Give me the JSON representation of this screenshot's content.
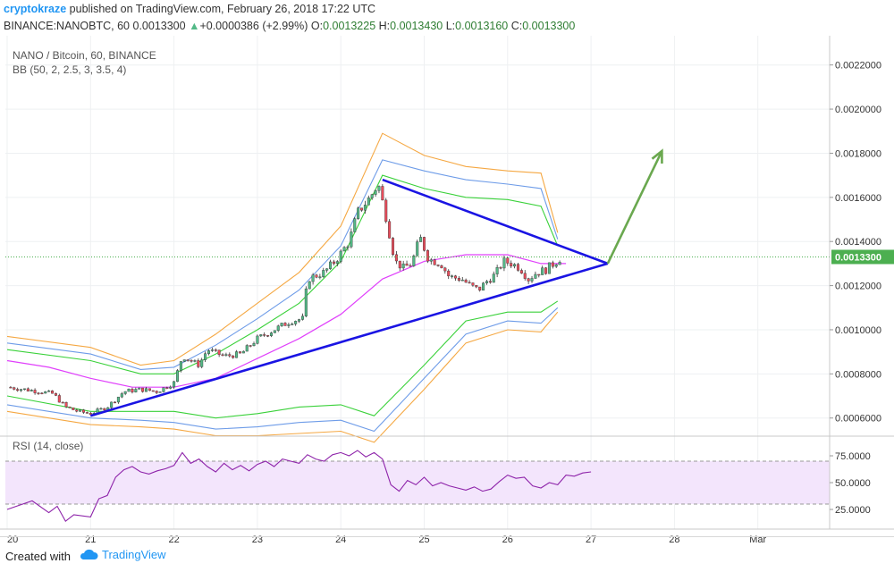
{
  "header": {
    "author": "cryptokraze",
    "published_text": "published on TradingView.com, February 26, 2018 17:22 UTC",
    "symbol": "BINANCE:NANOBTC, 60",
    "last_price": "0.0013300",
    "change_arrow": "▲",
    "change": "+0.0000386 (+2.99%)",
    "o_label": "O:",
    "o_value": "0.0013225",
    "h_label": "H:",
    "h_value": "0.0013430",
    "l_label": "L:",
    "l_value": "0.0013160",
    "c_label": "C:",
    "c_value": "0.0013300"
  },
  "legend": {
    "title": "NANO / Bitcoin, 60, BINANCE",
    "bb": "BB (50, 2, 2.5, 3, 3.5, 4)",
    "rsi": "RSI (14, close)"
  },
  "chart_data": {
    "type": "candlestick",
    "title": "NANO / Bitcoin, 60, BINANCE",
    "price_axis": {
      "ticks": [
        "0.0006000",
        "0.0008000",
        "0.0010000",
        "0.0012000",
        "0.0014000",
        "0.0016000",
        "0.0018000",
        "0.0020000",
        "0.0022000"
      ],
      "ylim": [
        0.00053,
        0.0023
      ],
      "current_price_label": "0.0013300",
      "current_price": 0.00133
    },
    "time_axis": {
      "ticks": [
        "20",
        "21",
        "22",
        "23",
        "24",
        "25",
        "26",
        "27",
        "28",
        "Mar"
      ],
      "tick_times": [
        20,
        21,
        22,
        23,
        24,
        25,
        26,
        27,
        28,
        29
      ],
      "xlim": [
        20.0,
        29.7
      ]
    },
    "rsi_axis": {
      "ticks": [
        "25.0000",
        "50.0000",
        "75.0000"
      ],
      "ylim": [
        10,
        90
      ],
      "upper_band": 70,
      "lower_band": 30
    },
    "price_series": [
      [
        20.0,
        0.00074
      ],
      [
        20.2,
        0.00073
      ],
      [
        20.4,
        0.00072
      ],
      [
        20.55,
        0.00071
      ],
      [
        20.7,
        0.00065
      ],
      [
        20.85,
        0.00063
      ],
      [
        21.0,
        0.00062
      ],
      [
        21.2,
        0.00065
      ],
      [
        21.4,
        0.00072
      ],
      [
        21.6,
        0.00073
      ],
      [
        21.8,
        0.00072
      ],
      [
        22.0,
        0.00076
      ],
      [
        22.1,
        0.00088
      ],
      [
        22.3,
        0.00084
      ],
      [
        22.4,
        0.00091
      ],
      [
        22.6,
        0.00088
      ],
      [
        22.8,
        0.00089
      ],
      [
        23.0,
        0.00096
      ],
      [
        23.2,
        0.001
      ],
      [
        23.4,
        0.00104
      ],
      [
        23.55,
        0.00105
      ],
      [
        23.6,
        0.00123
      ],
      [
        23.8,
        0.00126
      ],
      [
        23.95,
        0.00132
      ],
      [
        24.1,
        0.0014
      ],
      [
        24.2,
        0.00153
      ],
      [
        24.35,
        0.0016
      ],
      [
        24.45,
        0.00166
      ],
      [
        24.55,
        0.0015
      ],
      [
        24.65,
        0.00131
      ],
      [
        24.75,
        0.00128
      ],
      [
        24.85,
        0.0013
      ],
      [
        24.95,
        0.00142
      ],
      [
        25.05,
        0.00132
      ],
      [
        25.2,
        0.0013
      ],
      [
        25.3,
        0.00124
      ],
      [
        25.45,
        0.00123
      ],
      [
        25.55,
        0.0012
      ],
      [
        25.65,
        0.00118
      ],
      [
        25.75,
        0.00122
      ],
      [
        25.85,
        0.00125
      ],
      [
        25.95,
        0.00131
      ],
      [
        26.05,
        0.0013
      ],
      [
        26.15,
        0.00128
      ],
      [
        26.25,
        0.00123
      ],
      [
        26.35,
        0.00126
      ],
      [
        26.45,
        0.00127
      ],
      [
        26.55,
        0.0013
      ],
      [
        26.65,
        0.00133
      ]
    ],
    "bollinger": {
      "period": 50,
      "middle": [
        [
          20.0,
          0.00086
        ],
        [
          20.5,
          0.00083
        ],
        [
          21.0,
          0.00078
        ],
        [
          21.5,
          0.00074
        ],
        [
          22.0,
          0.00074
        ],
        [
          22.5,
          0.00078
        ],
        [
          23.0,
          0.00087
        ],
        [
          23.5,
          0.00096
        ],
        [
          24.0,
          0.00107
        ],
        [
          24.5,
          0.00123
        ],
        [
          25.0,
          0.00131
        ],
        [
          25.5,
          0.00134
        ],
        [
          26.0,
          0.00134
        ],
        [
          26.4,
          0.0013
        ],
        [
          26.7,
          0.0013
        ]
      ],
      "bands": [
        {
          "mult": 2,
          "upper": [
            [
              20.0,
              0.00091
            ],
            [
              21.0,
              0.00086
            ],
            [
              21.6,
              0.0008
            ],
            [
              22.0,
              0.0008
            ],
            [
              22.5,
              0.00089
            ],
            [
              23.0,
              0.001
            ],
            [
              23.5,
              0.00112
            ],
            [
              24.0,
              0.00131
            ],
            [
              24.5,
              0.0017
            ],
            [
              25.0,
              0.00164
            ],
            [
              25.5,
              0.0016
            ],
            [
              26.0,
              0.00159
            ],
            [
              26.4,
              0.00156
            ],
            [
              26.6,
              0.00138
            ]
          ],
          "lower": [
            [
              20.0,
              0.0007
            ],
            [
              21.0,
              0.00063
            ],
            [
              21.6,
              0.00063
            ],
            [
              22.0,
              0.00063
            ],
            [
              22.5,
              0.0006
            ],
            [
              23.0,
              0.00062
            ],
            [
              23.5,
              0.00065
            ],
            [
              24.0,
              0.00066
            ],
            [
              24.4,
              0.00061
            ],
            [
              25.0,
              0.00084
            ],
            [
              25.5,
              0.00104
            ],
            [
              26.0,
              0.00108
            ],
            [
              26.4,
              0.00108
            ],
            [
              26.6,
              0.00113
            ]
          ]
        },
        {
          "mult": 2.5,
          "upper": [
            [
              20.0,
              0.00094
            ],
            [
              21.0,
              0.00089
            ],
            [
              21.6,
              0.00082
            ],
            [
              22.0,
              0.00083
            ],
            [
              22.5,
              0.00093
            ],
            [
              23.0,
              0.00105
            ],
            [
              23.5,
              0.00118
            ],
            [
              24.0,
              0.00138
            ],
            [
              24.5,
              0.00177
            ],
            [
              25.0,
              0.00172
            ],
            [
              25.5,
              0.00168
            ],
            [
              26.0,
              0.00166
            ],
            [
              26.4,
              0.00164
            ],
            [
              26.6,
              0.00141
            ]
          ],
          "lower": [
            [
              20.0,
              0.00066
            ],
            [
              21.0,
              0.0006
            ],
            [
              21.6,
              0.00059
            ],
            [
              22.0,
              0.00058
            ],
            [
              22.5,
              0.00055
            ],
            [
              23.0,
              0.00056
            ],
            [
              23.5,
              0.00058
            ],
            [
              24.0,
              0.00059
            ],
            [
              24.4,
              0.00054
            ],
            [
              25.0,
              0.00078
            ],
            [
              25.5,
              0.00098
            ],
            [
              26.0,
              0.00104
            ],
            [
              26.4,
              0.00103
            ],
            [
              26.6,
              0.0011
            ]
          ]
        },
        {
          "mult": 3,
          "upper": [
            [
              20.0,
              0.00097
            ],
            [
              21.0,
              0.00092
            ],
            [
              21.6,
              0.00084
            ],
            [
              22.0,
              0.00086
            ],
            [
              22.5,
              0.00098
            ],
            [
              23.0,
              0.00112
            ],
            [
              23.5,
              0.00126
            ],
            [
              24.0,
              0.00147
            ],
            [
              24.5,
              0.00189
            ],
            [
              25.0,
              0.00179
            ],
            [
              25.5,
              0.00174
            ],
            [
              26.0,
              0.00172
            ],
            [
              26.4,
              0.00171
            ],
            [
              26.6,
              0.00144
            ]
          ],
          "lower": [
            [
              20.0,
              0.00063
            ],
            [
              21.0,
              0.00057
            ],
            [
              21.6,
              0.00056
            ],
            [
              22.0,
              0.00055
            ],
            [
              22.5,
              0.00052
            ],
            [
              23.0,
              0.00052
            ],
            [
              23.5,
              0.00053
            ],
            [
              24.0,
              0.00054
            ],
            [
              24.4,
              0.00049
            ],
            [
              25.0,
              0.00073
            ],
            [
              25.5,
              0.00094
            ],
            [
              26.0,
              0.001
            ],
            [
              26.4,
              0.00099
            ],
            [
              26.6,
              0.00108
            ]
          ]
        }
      ]
    },
    "triangle": {
      "upper_line": [
        [
          24.5,
          0.00168
        ],
        [
          27.2,
          0.0013
        ]
      ],
      "lower_line": [
        [
          21.0,
          0.00061
        ],
        [
          27.2,
          0.0013
        ]
      ]
    },
    "arrow": {
      "from": [
        27.2,
        0.0013
      ],
      "to": [
        27.85,
        0.00181
      ]
    },
    "rsi": [
      [
        20.0,
        25
      ],
      [
        20.3,
        33
      ],
      [
        20.5,
        22
      ],
      [
        20.6,
        28
      ],
      [
        20.7,
        14
      ],
      [
        20.8,
        20
      ],
      [
        21.0,
        18
      ],
      [
        21.1,
        35
      ],
      [
        21.2,
        38
      ],
      [
        21.3,
        55
      ],
      [
        21.4,
        62
      ],
      [
        21.5,
        65
      ],
      [
        21.6,
        60
      ],
      [
        21.7,
        58
      ],
      [
        21.8,
        61
      ],
      [
        21.9,
        63
      ],
      [
        22.0,
        66
      ],
      [
        22.1,
        78
      ],
      [
        22.2,
        68
      ],
      [
        22.3,
        72
      ],
      [
        22.4,
        65
      ],
      [
        22.5,
        60
      ],
      [
        22.6,
        68
      ],
      [
        22.7,
        62
      ],
      [
        22.8,
        66
      ],
      [
        22.9,
        61
      ],
      [
        23.0,
        67
      ],
      [
        23.1,
        70
      ],
      [
        23.2,
        65
      ],
      [
        23.3,
        72
      ],
      [
        23.4,
        70
      ],
      [
        23.5,
        68
      ],
      [
        23.6,
        76
      ],
      [
        23.7,
        72
      ],
      [
        23.8,
        70
      ],
      [
        23.9,
        76
      ],
      [
        24.0,
        78
      ],
      [
        24.1,
        75
      ],
      [
        24.2,
        80
      ],
      [
        24.3,
        74
      ],
      [
        24.4,
        78
      ],
      [
        24.5,
        72
      ],
      [
        24.6,
        48
      ],
      [
        24.7,
        42
      ],
      [
        24.8,
        52
      ],
      [
        24.9,
        48
      ],
      [
        25.0,
        55
      ],
      [
        25.1,
        47
      ],
      [
        25.2,
        50
      ],
      [
        25.3,
        47
      ],
      [
        25.4,
        45
      ],
      [
        25.5,
        43
      ],
      [
        25.6,
        46
      ],
      [
        25.7,
        42
      ],
      [
        25.8,
        44
      ],
      [
        25.9,
        51
      ],
      [
        26.0,
        57
      ],
      [
        26.1,
        54
      ],
      [
        26.2,
        55
      ],
      [
        26.3,
        47
      ],
      [
        26.4,
        45
      ],
      [
        26.5,
        50
      ],
      [
        26.6,
        48
      ],
      [
        26.7,
        57
      ],
      [
        26.8,
        56
      ],
      [
        26.9,
        59
      ],
      [
        27.0,
        60
      ]
    ]
  },
  "footer": {
    "created_with": "Created with",
    "brand": "TradingView"
  },
  "colors": {
    "candle_up": "#53b987",
    "candle_down": "#eb4d5c",
    "trend_lines": "#1a14e3",
    "arrow": "#6aa84f",
    "bb_middle": "#e040fb",
    "bb_2": "#3ad13a",
    "bb_2_5": "#6e9ce8",
    "bb_3": "#f5a843",
    "rsi_line": "#8e24aa",
    "rsi_band_fill": "#f3e5fc",
    "price_label_bg": "#4caf50"
  }
}
